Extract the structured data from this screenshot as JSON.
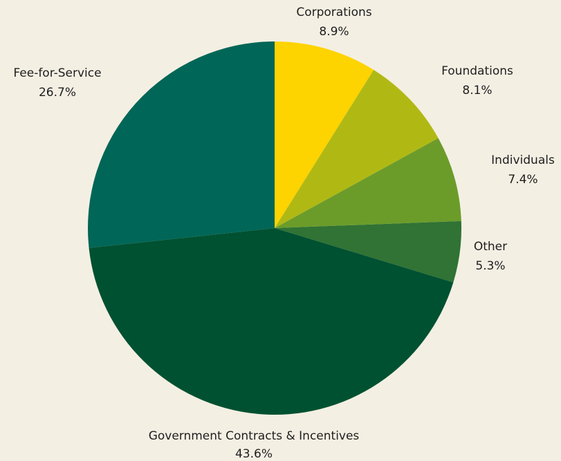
{
  "chart_data": {
    "type": "pie",
    "title": "",
    "start_angle_deg": 0,
    "direction": "clockwise",
    "slices": [
      {
        "label": "Corporations",
        "value": 8.9,
        "value_label": "8.9%",
        "color": "#fdd300"
      },
      {
        "label": "Foundations",
        "value": 8.1,
        "value_label": "8.1%",
        "color": "#b0b914"
      },
      {
        "label": "Individuals",
        "value": 7.4,
        "value_label": "7.4%",
        "color": "#6b9c2a"
      },
      {
        "label": "Other",
        "value": 5.3,
        "value_label": "5.3%",
        "color": "#307334"
      },
      {
        "label": "Government Contracts & Incentives",
        "value": 43.6,
        "value_label": "43.6%",
        "color": "#005131"
      },
      {
        "label": "Fee-for-Service",
        "value": 26.7,
        "value_label": "26.7%",
        "color": "#006657"
      }
    ]
  }
}
